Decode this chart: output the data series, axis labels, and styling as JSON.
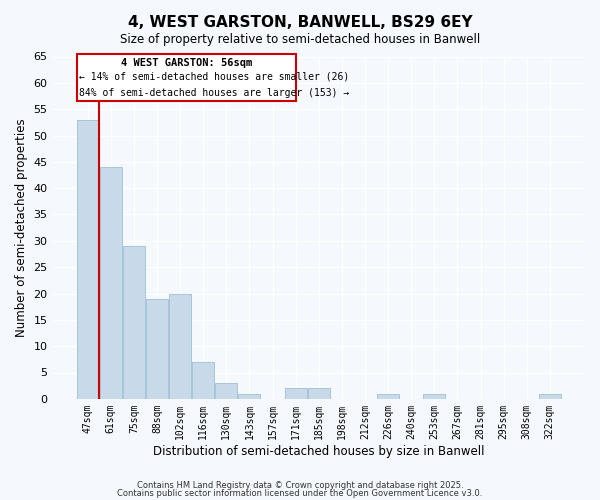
{
  "title": "4, WEST GARSTON, BANWELL, BS29 6EY",
  "subtitle": "Size of property relative to semi-detached houses in Banwell",
  "xlabel": "Distribution of semi-detached houses by size in Banwell",
  "ylabel": "Number of semi-detached properties",
  "bar_labels": [
    "47sqm",
    "61sqm",
    "75sqm",
    "88sqm",
    "102sqm",
    "116sqm",
    "130sqm",
    "143sqm",
    "157sqm",
    "171sqm",
    "185sqm",
    "198sqm",
    "212sqm",
    "226sqm",
    "240sqm",
    "253sqm",
    "267sqm",
    "281sqm",
    "295sqm",
    "308sqm",
    "322sqm"
  ],
  "bar_values": [
    53,
    44,
    29,
    19,
    20,
    7,
    3,
    1,
    0,
    2,
    2,
    0,
    0,
    1,
    0,
    1,
    0,
    0,
    0,
    0,
    1
  ],
  "bar_color": "#c8daea",
  "bar_edge_color": "#a8c4d8",
  "property_line_color": "#cc0000",
  "ylim": [
    0,
    65
  ],
  "yticks": [
    0,
    5,
    10,
    15,
    20,
    25,
    30,
    35,
    40,
    45,
    50,
    55,
    60,
    65
  ],
  "annotation_title": "4 WEST GARSTON: 56sqm",
  "annotation_line1": "← 14% of semi-detached houses are smaller (26)",
  "annotation_line2": "84% of semi-detached houses are larger (153) →",
  "annotation_box_color": "#cc0000",
  "footnote1": "Contains HM Land Registry data © Crown copyright and database right 2025.",
  "footnote2": "Contains public sector information licensed under the Open Government Licence v3.0.",
  "background_color": "#f5f8fc",
  "grid_color": "#ffffff"
}
